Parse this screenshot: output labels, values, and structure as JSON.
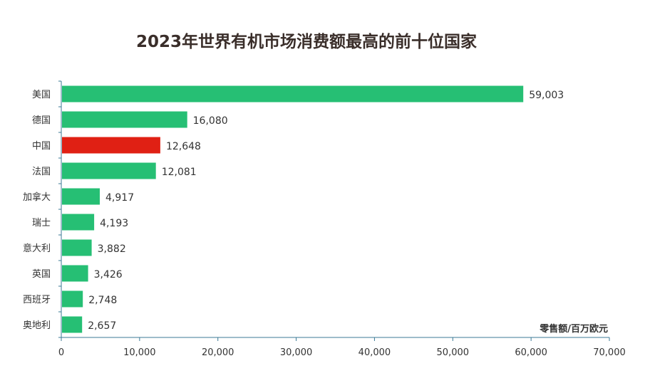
{
  "chart_data": {
    "type": "bar",
    "orientation": "horizontal",
    "title": "2023年世界有机市场消费额最高的前十位国家",
    "xlabel": "零售额/百万欧元",
    "ylabel": "",
    "xlim": [
      0,
      70000
    ],
    "xticks": [
      0,
      10000,
      20000,
      30000,
      40000,
      50000,
      60000,
      70000
    ],
    "xtick_labels": [
      "0",
      "10,000",
      "20,000",
      "30,000",
      "40,000",
      "50,000",
      "60,000",
      "70,000"
    ],
    "grid": false,
    "categories": [
      "美国",
      "德国",
      "中国",
      "法国",
      "加拿大",
      "瑞士",
      "意大利",
      "英国",
      "西班牙",
      "奥地利"
    ],
    "values": [
      59003,
      16080,
      12648,
      12081,
      4917,
      4193,
      3882,
      3426,
      2748,
      2657
    ],
    "value_labels": [
      "59,003",
      "16,080",
      "12,648",
      "12,081",
      "4,917",
      "4,193",
      "3,882",
      "3,426",
      "2,748",
      "2,657"
    ],
    "colors": {
      "default": "#26bf74",
      "highlight": "#e02014",
      "highlight_category": "中国",
      "axis": "#3b7a96"
    }
  }
}
